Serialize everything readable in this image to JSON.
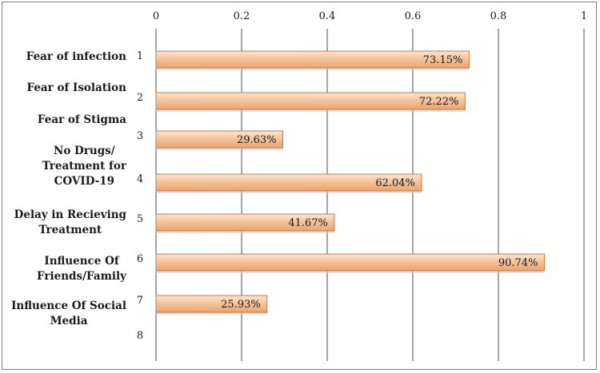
{
  "chart_data": {
    "type": "bar",
    "orientation": "horizontal",
    "xlim": [
      0,
      1
    ],
    "x_ticks": [
      "0",
      "0.2",
      "0.4",
      "0.6",
      "0.8",
      "1"
    ],
    "category_numbers": [
      "1",
      "2",
      "3",
      "4",
      "5",
      "6",
      "7",
      "8"
    ],
    "categories": [
      "Fear of infection",
      "Fear of Isolation",
      "Fear of Stigma",
      "No Drugs/\nTreatment for\nCOVID-19",
      "Delay in Recieving\nTreatment",
      "Influence Of\nFriends/Family",
      "Influence Of Social\nMedia"
    ],
    "values": [
      0.7315,
      0.7222,
      0.2963,
      0.6204,
      0.4167,
      0.9074,
      0.2593
    ],
    "data_labels": [
      "73.15%",
      "72.22%",
      "29.63%",
      "62.04%",
      "41.67%",
      "90.74%",
      "25.93%"
    ],
    "grid": true,
    "legend": "none",
    "colors": {
      "bar_fill": "#f6c49a",
      "bar_border": "#c07a45",
      "grid": "#4d4d4d"
    }
  }
}
